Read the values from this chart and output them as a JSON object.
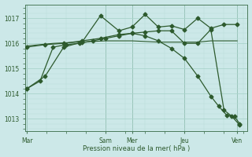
{
  "background_color": "#cce8e8",
  "grid_major_color": "#aad4cc",
  "grid_minor_color": "#bbddd8",
  "line_color": "#2d5a2d",
  "sep_color": "#4a7a5a",
  "xlabel": "Pression niveau de la mer( hPa )",
  "yticks": [
    1013,
    1014,
    1015,
    1016,
    1017
  ],
  "ylim": [
    1012.5,
    1017.55
  ],
  "xlim": [
    -0.05,
    8.4
  ],
  "xtick_labels": [
    "Mar",
    "Sam",
    "Mer",
    "Jeu",
    "Ven"
  ],
  "xtick_positions": [
    0.0,
    3.0,
    4.0,
    6.0,
    8.0
  ],
  "series": [
    {
      "x": [
        0.0,
        0.7,
        1.4,
        2.1,
        2.8,
        3.5,
        4.0,
        4.5,
        5.0,
        5.5,
        6.0,
        6.5,
        7.0,
        7.5,
        8.0
      ],
      "y": [
        1014.2,
        1014.7,
        1015.85,
        1016.05,
        1017.1,
        1016.5,
        1016.65,
        1017.15,
        1016.65,
        1016.7,
        1016.55,
        1017.0,
        1016.6,
        1016.75,
        1016.75
      ],
      "marker": "D",
      "ms": 2.5,
      "lw": 0.9
    },
    {
      "x": [
        0.0,
        0.7,
        1.4,
        2.1,
        2.8,
        3.5,
        4.0,
        4.5,
        5.0,
        5.5,
        6.0,
        6.5,
        7.0,
        7.5,
        7.8,
        8.1
      ],
      "y": [
        1015.85,
        1015.95,
        1016.0,
        1016.1,
        1016.2,
        1016.35,
        1016.4,
        1016.45,
        1016.5,
        1016.5,
        1016.0,
        1016.0,
        1016.55,
        1013.35,
        1013.1,
        1012.75
      ],
      "marker": "D",
      "ms": 2.5,
      "lw": 0.9
    },
    {
      "x": [
        0.0,
        1.0,
        2.0,
        3.0,
        4.0,
        5.0,
        6.0,
        6.5,
        7.0,
        7.5,
        8.0
      ],
      "y": [
        1015.9,
        1016.0,
        1016.05,
        1016.1,
        1016.1,
        1016.05,
        1016.05,
        1016.05,
        1016.1,
        1016.1,
        1016.1
      ],
      "marker": null,
      "ms": 0,
      "lw": 0.8
    },
    {
      "x": [
        0.0,
        0.5,
        1.0,
        1.5,
        2.0,
        2.5,
        3.0,
        3.5,
        4.0,
        4.5,
        5.0,
        5.5,
        6.0,
        6.5,
        7.0,
        7.3,
        7.6,
        7.9,
        8.1
      ],
      "y": [
        1014.2,
        1014.5,
        1015.85,
        1015.95,
        1016.0,
        1016.1,
        1016.2,
        1016.3,
        1016.4,
        1016.3,
        1016.1,
        1015.8,
        1015.4,
        1014.7,
        1013.9,
        1013.5,
        1013.15,
        1013.1,
        1012.8
      ],
      "marker": "D",
      "ms": 2.5,
      "lw": 0.9
    }
  ]
}
